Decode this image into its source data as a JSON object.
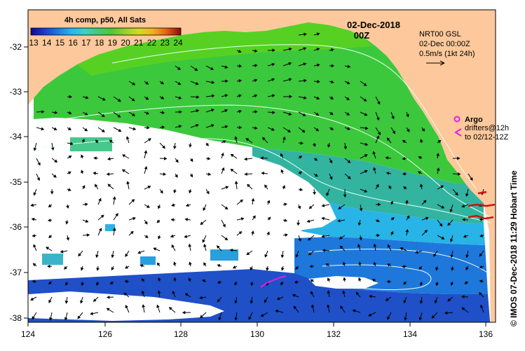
{
  "map": {
    "date_title": "02-Dec-2018",
    "time_title": "00Z",
    "colorbar": {
      "title": "4h comp, p50, All Sats",
      "ticks": [
        "13",
        "14",
        "15",
        "16",
        "17",
        "18",
        "19",
        "20",
        "21",
        "22",
        "23",
        "24"
      ],
      "colors": [
        "#0a0a8c",
        "#1a3cc8",
        "#1e78dc",
        "#28b4f0",
        "#3cd2c8",
        "#46c878",
        "#50c832",
        "#96d228",
        "#d2dc1e",
        "#f0b41e",
        "#e66414",
        "#c81e0a",
        "#8c0a0a"
      ]
    },
    "lon_ticks": [
      "124",
      "126",
      "128",
      "130",
      "132",
      "134",
      "136"
    ],
    "lat_ticks": [
      "-32",
      "-33",
      "-34",
      "-35",
      "-36",
      "-37",
      "-38"
    ],
    "velocity_legend": {
      "line1": "NRT00 GSL",
      "line2": "02-Dec 00:00Z",
      "line3": "0.5m/s (1kt 24h)"
    },
    "argo_legend": {
      "argo_label": "Argo",
      "drifters_label": "drifters@12h",
      "drifters_range": "to 02/12-12Z"
    },
    "credit": "© IMOS 07-Dec-2018 11:29 Hobart Time",
    "colors": {
      "land": "#fcc89c",
      "no_data": "#ffffff",
      "argo": "#e020e0",
      "drifter": "#cc1010",
      "contour": "#e8fff0"
    }
  }
}
